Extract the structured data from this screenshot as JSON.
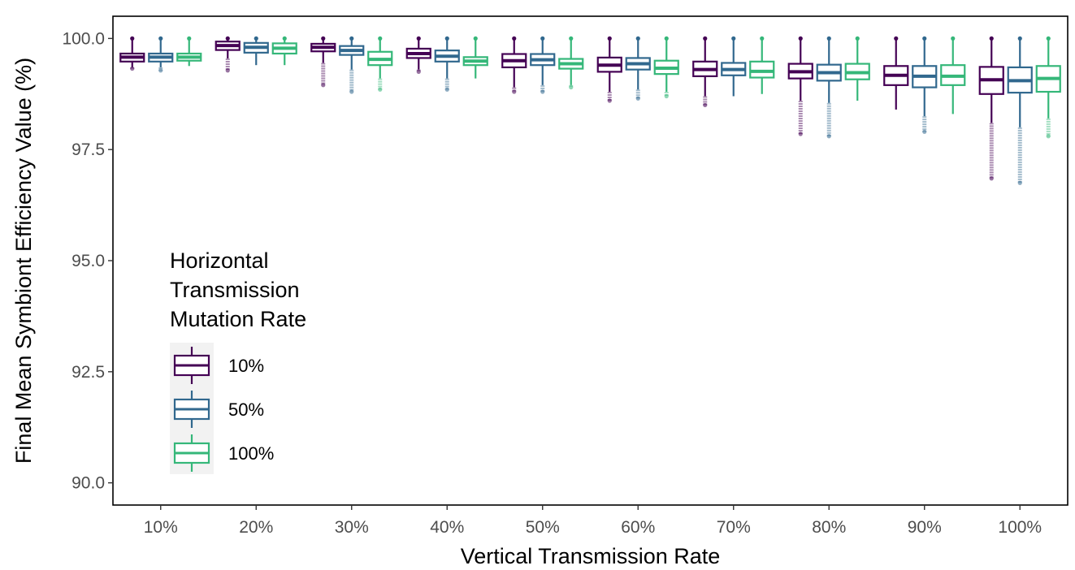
{
  "chart_data": {
    "type": "boxplot",
    "xlabel": "Vertical Transmission Rate",
    "ylabel": "Final Mean Symbiont Efficiency Value (%)",
    "categories": [
      "10%",
      "20%",
      "30%",
      "40%",
      "50%",
      "60%",
      "70%",
      "80%",
      "90%",
      "100%"
    ],
    "ylim": [
      89.5,
      100.5
    ],
    "yticks": [
      "90.0",
      "92.5",
      "95.0",
      "97.5",
      "100.0"
    ],
    "ytick_values": [
      90.0,
      92.5,
      95.0,
      97.5,
      100.0
    ],
    "grid": false,
    "legend": {
      "title_lines": [
        "Horizontal",
        "Transmission",
        "Mutation Rate"
      ],
      "placement": "inside-left"
    },
    "series": [
      {
        "name": "10%",
        "color": "#440154",
        "boxes": [
          {
            "whislo": 99.35,
            "q1": 99.48,
            "med": 99.58,
            "q3": 99.66,
            "whishi": 100.0,
            "outliers_low": 99.32,
            "outliers_high": 100.0
          },
          {
            "whislo": 99.55,
            "q1": 99.74,
            "med": 99.84,
            "q3": 99.93,
            "whishi": 100.0,
            "outliers_low": 99.28,
            "outliers_high": 100.0
          },
          {
            "whislo": 99.45,
            "q1": 99.71,
            "med": 99.8,
            "q3": 99.88,
            "whishi": 100.0,
            "outliers_low": 98.95,
            "outliers_high": 100.0
          },
          {
            "whislo": 99.3,
            "q1": 99.56,
            "med": 99.66,
            "q3": 99.77,
            "whishi": 100.0,
            "outliers_low": 99.25,
            "outliers_high": 100.0
          },
          {
            "whislo": 98.9,
            "q1": 99.35,
            "med": 99.5,
            "q3": 99.65,
            "whishi": 100.0,
            "outliers_low": 98.8,
            "outliers_high": 100.0
          },
          {
            "whislo": 98.8,
            "q1": 99.25,
            "med": 99.4,
            "q3": 99.57,
            "whishi": 100.0,
            "outliers_low": 98.6,
            "outliers_high": 100.0
          },
          {
            "whislo": 98.7,
            "q1": 99.15,
            "med": 99.3,
            "q3": 99.48,
            "whishi": 100.0,
            "outliers_low": 98.5,
            "outliers_high": 100.0
          },
          {
            "whislo": 98.6,
            "q1": 99.1,
            "med": 99.25,
            "q3": 99.43,
            "whishi": 100.0,
            "outliers_low": 97.85,
            "outliers_high": 100.0
          },
          {
            "whislo": 98.4,
            "q1": 98.95,
            "med": 99.17,
            "q3": 99.38,
            "whishi": 100.0,
            "outliers_low": 98.4,
            "outliers_high": 100.0
          },
          {
            "whislo": 98.1,
            "q1": 98.75,
            "med": 99.07,
            "q3": 99.36,
            "whishi": 100.0,
            "outliers_low": 96.85,
            "outliers_high": 100.0
          }
        ]
      },
      {
        "name": "50%",
        "color": "#31688e",
        "boxes": [
          {
            "whislo": 99.35,
            "q1": 99.48,
            "med": 99.58,
            "q3": 99.66,
            "whishi": 100.0,
            "outliers_low": 99.28,
            "outliers_high": 100.0
          },
          {
            "whislo": 99.4,
            "q1": 99.68,
            "med": 99.8,
            "q3": 99.9,
            "whishi": 100.0,
            "outliers_low": 99.4,
            "outliers_high": 100.0
          },
          {
            "whislo": 99.3,
            "q1": 99.63,
            "med": 99.73,
            "q3": 99.83,
            "whishi": 100.0,
            "outliers_low": 98.8,
            "outliers_high": 100.0
          },
          {
            "whislo": 99.1,
            "q1": 99.48,
            "med": 99.6,
            "q3": 99.73,
            "whishi": 100.0,
            "outliers_low": 98.85,
            "outliers_high": 100.0
          },
          {
            "whislo": 98.95,
            "q1": 99.4,
            "med": 99.52,
            "q3": 99.65,
            "whishi": 100.0,
            "outliers_low": 98.8,
            "outliers_high": 100.0
          },
          {
            "whislo": 98.85,
            "q1": 99.3,
            "med": 99.43,
            "q3": 99.56,
            "whishi": 100.0,
            "outliers_low": 98.65,
            "outliers_high": 100.0
          },
          {
            "whislo": 98.7,
            "q1": 99.17,
            "med": 99.3,
            "q3": 99.45,
            "whishi": 100.0,
            "outliers_low": 98.7,
            "outliers_high": 100.0
          },
          {
            "whislo": 98.55,
            "q1": 99.05,
            "med": 99.23,
            "q3": 99.41,
            "whishi": 100.0,
            "outliers_low": 97.8,
            "outliers_high": 100.0
          },
          {
            "whislo": 98.25,
            "q1": 98.9,
            "med": 99.15,
            "q3": 99.38,
            "whishi": 100.0,
            "outliers_low": 97.9,
            "outliers_high": 100.0
          },
          {
            "whislo": 98.0,
            "q1": 98.78,
            "med": 99.05,
            "q3": 99.35,
            "whishi": 100.0,
            "outliers_low": 96.75,
            "outliers_high": 100.0
          }
        ]
      },
      {
        "name": "100%",
        "color": "#35b779",
        "boxes": [
          {
            "whislo": 99.38,
            "q1": 99.5,
            "med": 99.58,
            "q3": 99.66,
            "whishi": 100.0,
            "outliers_low": 99.38,
            "outliers_high": 100.0
          },
          {
            "whislo": 99.4,
            "q1": 99.66,
            "med": 99.78,
            "q3": 99.89,
            "whishi": 100.0,
            "outliers_low": 99.4,
            "outliers_high": 100.0
          },
          {
            "whislo": 99.1,
            "q1": 99.4,
            "med": 99.53,
            "q3": 99.7,
            "whishi": 100.0,
            "outliers_low": 98.85,
            "outliers_high": 100.0
          },
          {
            "whislo": 99.1,
            "q1": 99.4,
            "med": 99.49,
            "q3": 99.58,
            "whishi": 100.0,
            "outliers_low": 99.1,
            "outliers_high": 100.0
          },
          {
            "whislo": 98.95,
            "q1": 99.32,
            "med": 99.43,
            "q3": 99.54,
            "whishi": 100.0,
            "outliers_low": 98.9,
            "outliers_high": 100.0
          },
          {
            "whislo": 98.8,
            "q1": 99.2,
            "med": 99.33,
            "q3": 99.5,
            "whishi": 100.0,
            "outliers_low": 98.7,
            "outliers_high": 100.0
          },
          {
            "whislo": 98.75,
            "q1": 99.12,
            "med": 99.26,
            "q3": 99.48,
            "whishi": 100.0,
            "outliers_low": 98.75,
            "outliers_high": 100.0
          },
          {
            "whislo": 98.6,
            "q1": 99.08,
            "med": 99.23,
            "q3": 99.43,
            "whishi": 100.0,
            "outliers_low": 98.6,
            "outliers_high": 100.0
          },
          {
            "whislo": 98.3,
            "q1": 98.95,
            "med": 99.15,
            "q3": 99.4,
            "whishi": 100.0,
            "outliers_low": 98.3,
            "outliers_high": 100.0
          },
          {
            "whislo": 98.2,
            "q1": 98.8,
            "med": 99.1,
            "q3": 99.38,
            "whishi": 100.0,
            "outliers_low": 97.8,
            "outliers_high": 100.0
          }
        ]
      }
    ]
  }
}
